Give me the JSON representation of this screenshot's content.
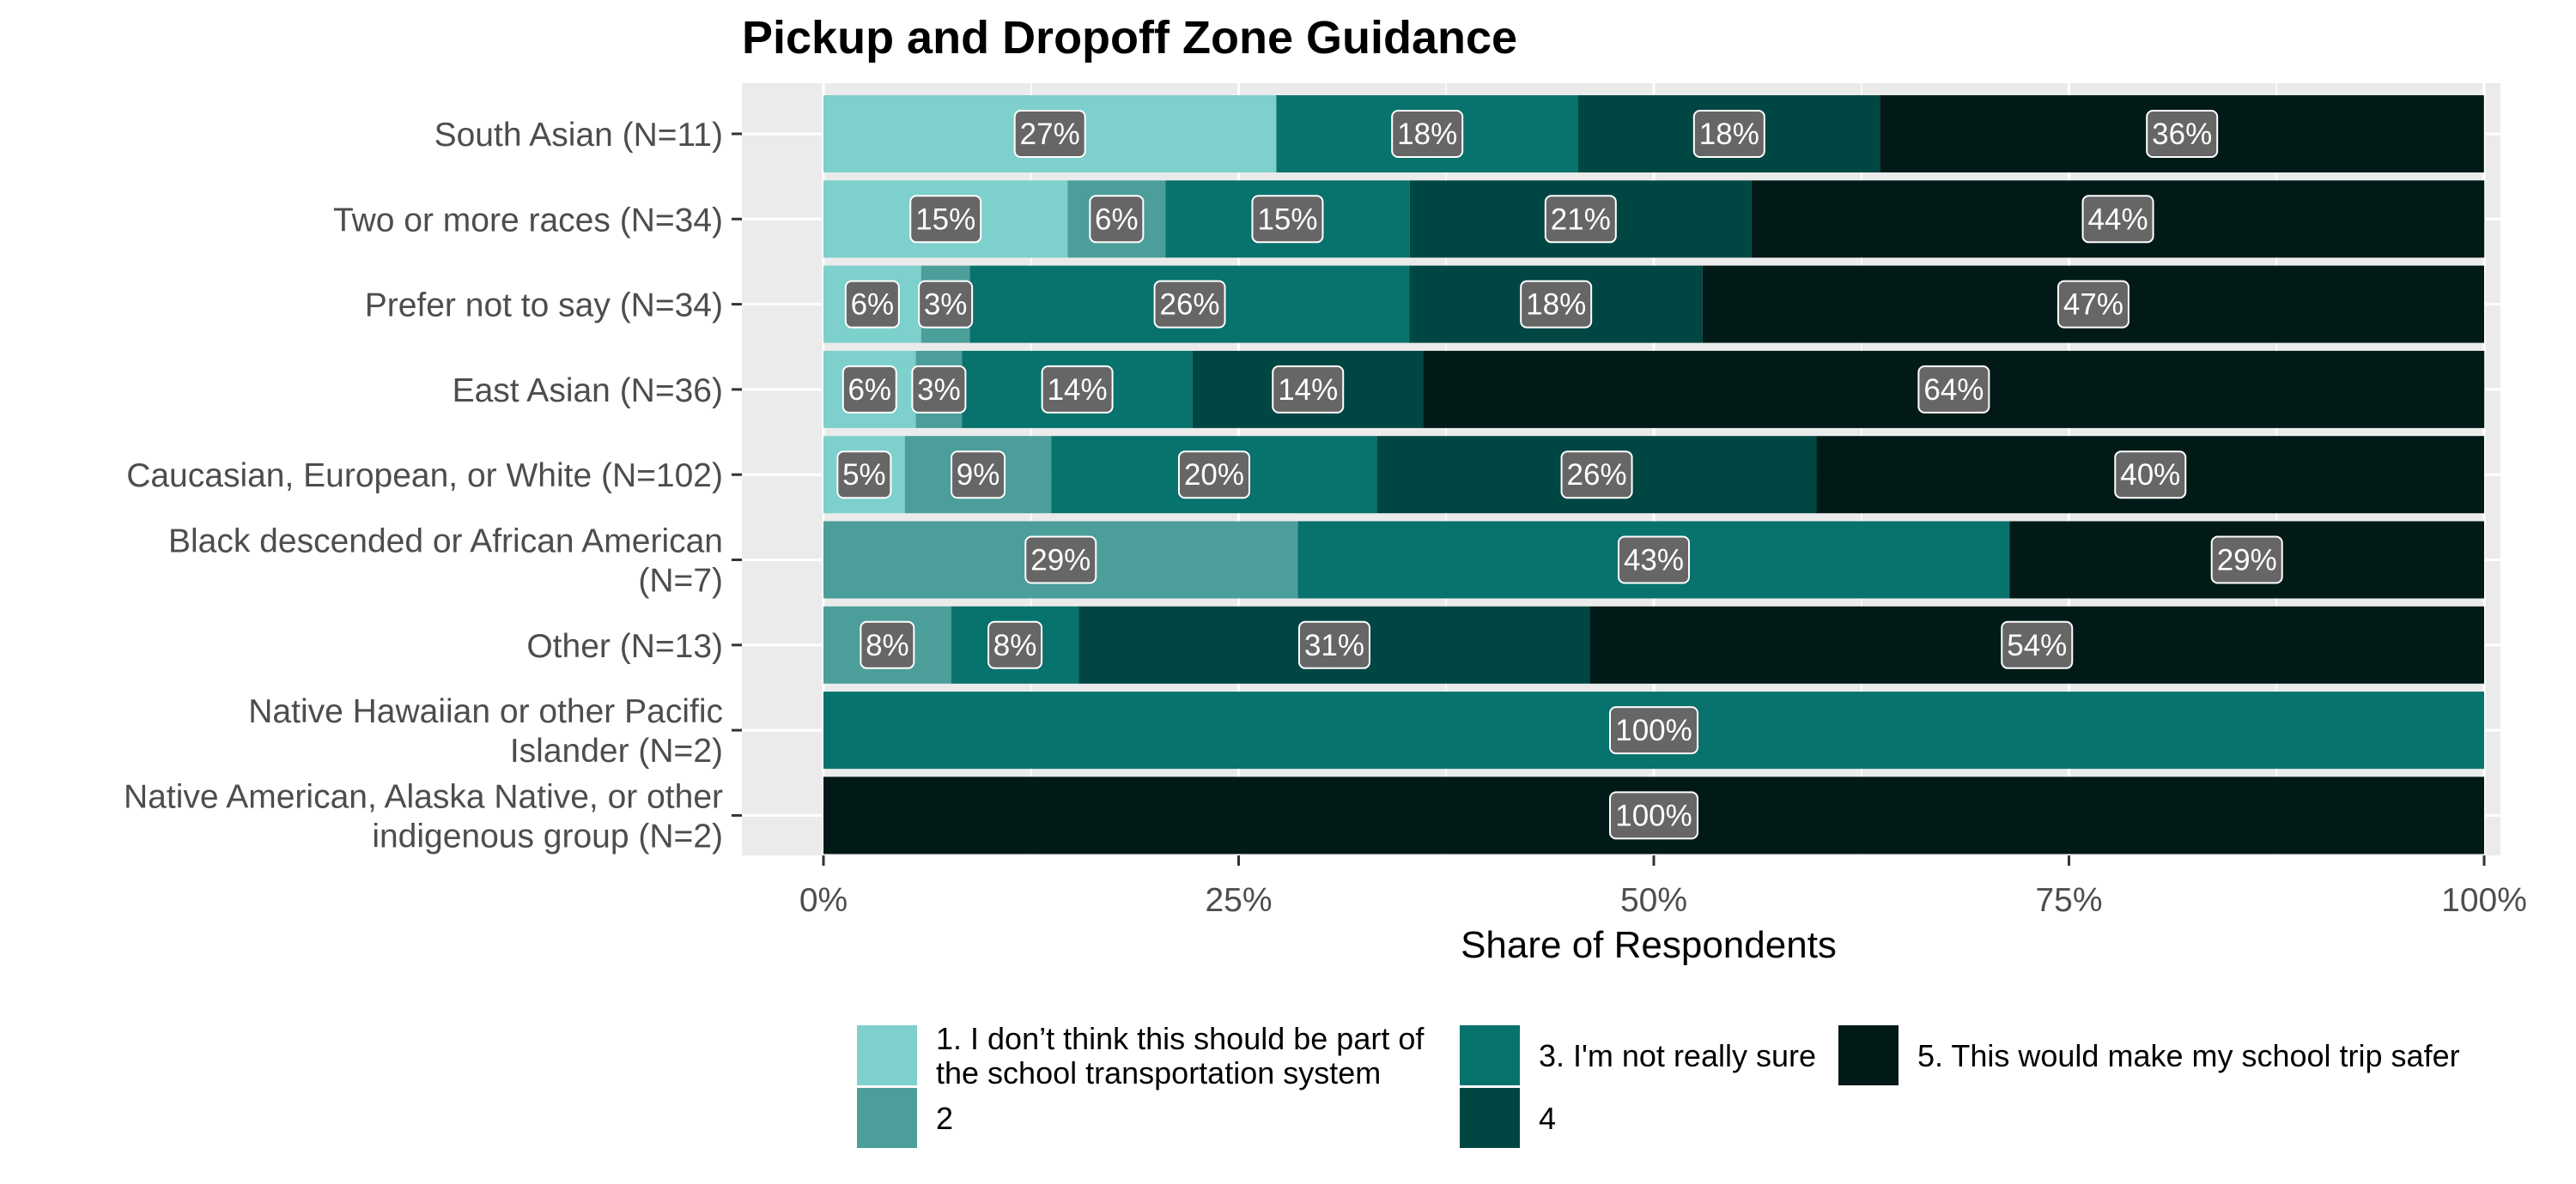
{
  "chart_data": {
    "type": "bar",
    "orientation": "horizontal",
    "stacked": "percent",
    "title": "Pickup and Dropoff Zone Guidance",
    "xlabel": "Share of Respondents",
    "ylabel": "",
    "xlim": [
      0,
      1
    ],
    "x_ticks": [
      0,
      0.25,
      0.5,
      0.75,
      1
    ],
    "x_tick_labels": [
      "0%",
      "25%",
      "50%",
      "75%",
      "100%"
    ],
    "grid": true,
    "legend_position": "bottom",
    "categories": [
      "South Asian (N=11)",
      "Two or more races (N=34)",
      "Prefer not to say (N=34)",
      "East Asian (N=36)",
      "Caucasian, European, or White (N=102)",
      "Black descended or African American (N=7)",
      "Other (N=13)",
      "Native Hawaiian or other Pacific Islander (N=2)",
      "Native American, Alaska Native, or other indigenous group (N=2)"
    ],
    "category_lines": [
      [
        "South Asian (N=11)"
      ],
      [
        "Two or more races (N=34)"
      ],
      [
        "Prefer not to say (N=34)"
      ],
      [
        "East Asian (N=36)"
      ],
      [
        "Caucasian, European, or White (N=102)"
      ],
      [
        "Black descended or African American",
        "(N=7)"
      ],
      [
        "Other (N=13)"
      ],
      [
        "Native Hawaiian or other Pacific",
        "Islander (N=2)"
      ],
      [
        "Native American, Alaska Native, or other",
        "indigenous group (N=2)"
      ]
    ],
    "series": [
      {
        "name": "1. I don’t think this should be part of the school transportation system",
        "legend_lines": [
          "1. I don’t think this should be part of",
          "the school transportation system"
        ],
        "color": "#7dd0cb",
        "values": [
          0.2727,
          0.1471,
          0.0588,
          0.0556,
          0.049,
          0,
          0,
          0,
          0
        ],
        "labels": [
          "27%",
          "15%",
          "6%",
          "6%",
          "5%",
          "",
          "",
          "",
          ""
        ]
      },
      {
        "name": "2",
        "legend_lines": [
          "2"
        ],
        "color": "#4b9e99",
        "values": [
          0,
          0.0588,
          0.0294,
          0.0278,
          0.0882,
          0.2857,
          0.0769,
          0,
          0
        ],
        "labels": [
          "",
          "6%",
          "3%",
          "3%",
          "9%",
          "29%",
          "8%",
          "",
          ""
        ]
      },
      {
        "name": "3. I'm not really sure",
        "legend_lines": [
          "3. I'm not really sure"
        ],
        "color": "#08726d",
        "values": [
          0.1818,
          0.1471,
          0.2647,
          0.1389,
          0.1961,
          0.4286,
          0.0769,
          1,
          0
        ],
        "labels": [
          "18%",
          "15%",
          "26%",
          "14%",
          "20%",
          "43%",
          "8%",
          "100%",
          ""
        ]
      },
      {
        "name": "4",
        "legend_lines": [
          "4"
        ],
        "color": "#004643",
        "values": [
          0.1818,
          0.2059,
          0.1765,
          0.1389,
          0.2647,
          0,
          0.3077,
          0,
          0
        ],
        "labels": [
          "18%",
          "21%",
          "18%",
          "14%",
          "26%",
          "",
          "31%",
          "",
          ""
        ]
      },
      {
        "name": "5. This would make my school trip safer",
        "legend_lines": [
          "5. This would make my school trip safer"
        ],
        "color": "#011a17",
        "values": [
          0.3636,
          0.4412,
          0.4706,
          0.6389,
          0.402,
          0.2857,
          0.5385,
          0,
          1
        ],
        "labels": [
          "36%",
          "44%",
          "47%",
          "64%",
          "40%",
          "29%",
          "54%",
          "",
          "100%"
        ]
      }
    ]
  }
}
